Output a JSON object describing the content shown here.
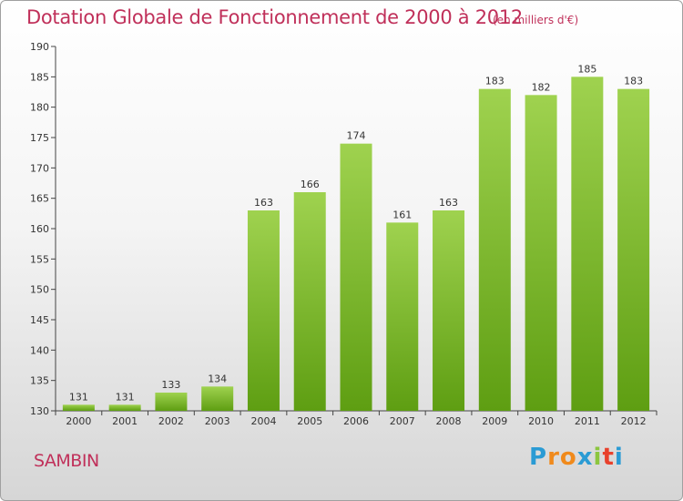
{
  "title": "Dotation Globale de Fonctionnement de 2000 à 2012",
  "unit_label": "(en milliers d'€)",
  "commune": "SAMBIN",
  "brand": {
    "letters": [
      "P",
      "r",
      "o",
      "x",
      "i",
      "t",
      "i"
    ],
    "colors": [
      "#2a9bd4",
      "#f08a1c",
      "#f08a1c",
      "#2a9bd4",
      "#8cc63f",
      "#e8412c",
      "#2a9bd4"
    ]
  },
  "colors": {
    "title": "#c0305a",
    "bar_top": "#9fd24f",
    "bar_bottom": "#5e9e12"
  },
  "chart_data": {
    "type": "bar",
    "title": "Dotation Globale de Fonctionnement de 2000 à 2012",
    "subtitle": "(en milliers d'€)",
    "categories": [
      "2000",
      "2001",
      "2002",
      "2003",
      "2004",
      "2005",
      "2006",
      "2007",
      "2008",
      "2009",
      "2010",
      "2011",
      "2012"
    ],
    "values": [
      131,
      131,
      133,
      134,
      163,
      166,
      174,
      161,
      163,
      183,
      182,
      185,
      183
    ],
    "ylim": [
      130,
      190
    ],
    "yticks": [
      130,
      135,
      140,
      145,
      150,
      155,
      160,
      165,
      170,
      175,
      180,
      185,
      190
    ],
    "grid": false,
    "xlabel": "",
    "ylabel": ""
  }
}
